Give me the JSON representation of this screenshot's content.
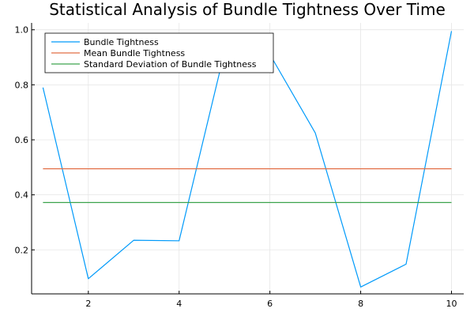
{
  "chart_data": {
    "type": "line",
    "title": "Statistical Analysis of Bundle Tightness Over Time",
    "xlabel": "",
    "ylabel": "",
    "xlim": [
      0.75,
      10.27
    ],
    "ylim": [
      0.04,
      1.025
    ],
    "xticks": [
      2,
      4,
      6,
      8,
      10
    ],
    "yticks": [
      0.2,
      0.4,
      0.6,
      0.8,
      1.0
    ],
    "xtick_labels": [
      "2",
      "4",
      "6",
      "8",
      "10"
    ],
    "ytick_labels": [
      "0.2",
      "0.4",
      "0.6",
      "0.8",
      "1.0"
    ],
    "grid": true,
    "legend_position": "top-left",
    "x": [
      1,
      2,
      3,
      4,
      5,
      6,
      7,
      8,
      9,
      10
    ],
    "series": [
      {
        "name": "Bundle Tightness",
        "color": "#009AFA",
        "values": [
          0.79,
          0.095,
          0.235,
          0.233,
          0.92,
          0.91,
          0.625,
          0.065,
          0.148,
          0.995
        ]
      },
      {
        "name": "Mean Bundle Tightness",
        "color": "#E26F46",
        "values": [
          0.495,
          0.495,
          0.495,
          0.495,
          0.495,
          0.495,
          0.495,
          0.495,
          0.495,
          0.495
        ]
      },
      {
        "name": "Standard Deviation of Bundle Tightness",
        "color": "#3DA44D",
        "values": [
          0.372,
          0.372,
          0.372,
          0.372,
          0.372,
          0.372,
          0.372,
          0.372,
          0.372,
          0.372
        ]
      }
    ]
  }
}
